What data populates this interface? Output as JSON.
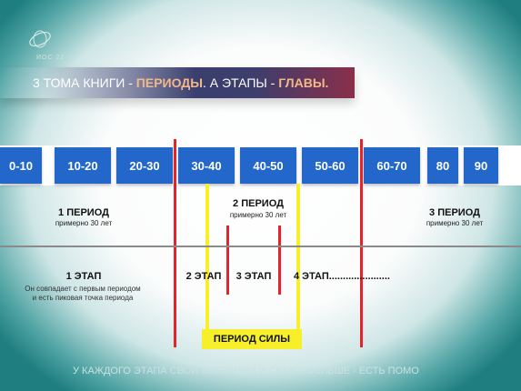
{
  "logo": {
    "text": "ИОС 22"
  },
  "banner": {
    "part1": "3 ТОМА КНИГИ - ",
    "highlight1": "ПЕРИОДЫ",
    "part2": ". А ЭТАПЫ - ",
    "highlight2": "ГЛАВЫ."
  },
  "timeline": {
    "decades": [
      "0-10",
      "10-20",
      "20-30",
      "30-40",
      "40-50",
      "50-60",
      "60-70",
      "80",
      "90"
    ]
  },
  "periods": [
    {
      "title": "1 ПЕРИОД",
      "sub": "примерно 30 лет"
    },
    {
      "title": "2 ПЕРИОД",
      "sub": "примерно 30 лет"
    },
    {
      "title": "3 ПЕРИОД",
      "sub": "примерно 30 лет"
    }
  ],
  "stages": {
    "s1_title": "1 ЭТАП",
    "s1_note_line1": "Он совпадает с первым периодом",
    "s1_note_line2": "и есть пиковая точка периода",
    "s2": "2 ЭТАП",
    "s3": "3 ЭТАП",
    "s4": "4 ЭТАП......................"
  },
  "power_period": "ПЕРИОД СИЛЫ",
  "footer": "У КАЖДОГО ЭТАПА СВОИ ВИБРАЦИИ И СКАЖУ БОЛЬШЕ - ЕСТЬ ПОМО",
  "colors": {
    "decade_box": "#2267c9",
    "red_marker": "#e8212b",
    "yellow_bracket": "#f7ef2a",
    "banner_highlight": "#f2b88b"
  }
}
